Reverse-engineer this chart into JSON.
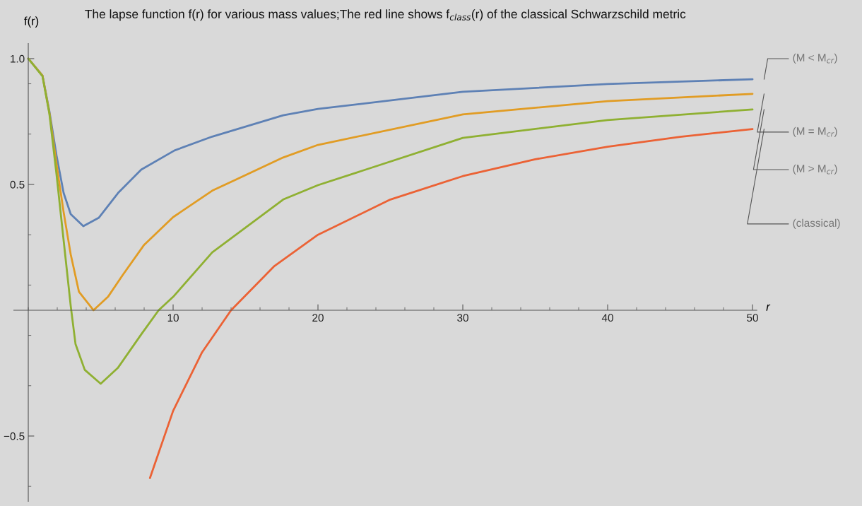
{
  "chart_data": {
    "type": "line",
    "title": "The lapse function f(r) for various mass values;The red line shows f$_{class}$(r) of the classical Schwarzschild metric",
    "xlabel": "r",
    "ylabel": "f(r)",
    "series": [
      {
        "name": "(M < M$_{cr}$)",
        "color": "#5e81b5",
        "x": [
          0,
          0.98,
          1.46,
          1.95,
          2.44,
          2.93,
          3.8,
          4.88,
          6.2,
          7.8,
          10.1,
          12.7,
          17.6,
          20,
          30,
          40,
          50
        ],
        "values": [
          1.0,
          0.933,
          0.79,
          0.615,
          0.466,
          0.382,
          0.334,
          0.368,
          0.466,
          0.559,
          0.635,
          0.69,
          0.775,
          0.8,
          0.868,
          0.899,
          0.918
        ]
      },
      {
        "name": "(M = M$_{cr}$)",
        "color": "#e19c24",
        "x": [
          0,
          0.98,
          1.46,
          1.95,
          2.44,
          2.93,
          3.5,
          4.5,
          5.5,
          6.5,
          8,
          10,
          12.7,
          17.6,
          20,
          30,
          40,
          50
        ],
        "values": [
          1.0,
          0.933,
          0.784,
          0.58,
          0.39,
          0.222,
          0.073,
          0.0,
          0.053,
          0.138,
          0.26,
          0.37,
          0.475,
          0.607,
          0.657,
          0.778,
          0.831,
          0.86
        ]
      },
      {
        "name": "(M > M$_{cr}$)",
        "color": "#8fb032",
        "x": [
          0,
          0.98,
          1.46,
          1.95,
          2.44,
          2.93,
          3.26,
          3.9,
          5.0,
          6.2,
          7.8,
          9.0,
          10,
          12.7,
          17.6,
          20,
          30,
          40,
          50
        ],
        "values": [
          1.0,
          0.93,
          0.78,
          0.54,
          0.278,
          0.017,
          -0.134,
          -0.237,
          -0.292,
          -0.228,
          -0.096,
          0.0,
          0.053,
          0.23,
          0.44,
          0.497,
          0.685,
          0.756,
          0.798
        ]
      },
      {
        "name": "(classical)",
        "color": "#eb6235",
        "x": [
          8.4,
          10,
          12,
          14,
          17,
          20,
          25,
          30,
          35,
          40,
          45,
          50
        ],
        "values": [
          -0.667,
          -0.4,
          -0.167,
          0.0,
          0.176,
          0.3,
          0.44,
          0.533,
          0.6,
          0.65,
          0.689,
          0.72
        ]
      }
    ],
    "xlim": [
      -1,
      50.3
    ],
    "ylim": [
      -0.76,
      1.06
    ],
    "xticks": [
      10,
      20,
      30,
      40,
      50
    ],
    "yticks": [
      {
        "value": -0.5,
        "label": "−0.5"
      },
      0.5,
      {
        "value": 1.0,
        "label": "1.0"
      }
    ],
    "grid": false,
    "legend": false,
    "line_style": "solid",
    "marker": "none"
  }
}
